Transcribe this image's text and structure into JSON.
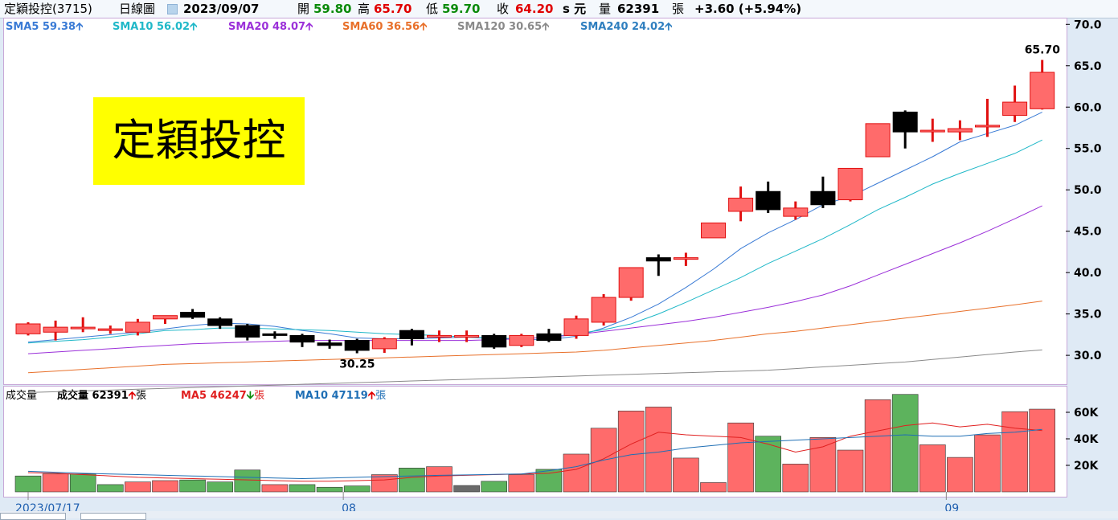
{
  "header": {
    "stock": "定穎投控(3715)",
    "chart_kind": "日線圖",
    "date": "2023/09/07",
    "open_label": "開",
    "open": "59.80",
    "high_label": "高",
    "high": "65.70",
    "low_label": "低",
    "low": "59.70",
    "close_label": "收",
    "close": "64.20",
    "unit": "s 元",
    "volume_label": "量",
    "volume": "62391",
    "volume_unit": "張",
    "change": "+3.60 (+5.94%)"
  },
  "ma_legend": [
    {
      "label": "SMA5 59.38",
      "arrow": "up",
      "color": "#3a7bd5"
    },
    {
      "label": "SMA10 56.02",
      "arrow": "up",
      "color": "#20b8c8"
    },
    {
      "label": "SMA20 48.07",
      "arrow": "up",
      "color": "#9b30d9"
    },
    {
      "label": "SMA60 36.56",
      "arrow": "up",
      "color": "#e8702a"
    },
    {
      "label": "SMA120 30.65",
      "arrow": "up",
      "color": "#8a8a8a"
    },
    {
      "label": "SMA240 24.02",
      "arrow": "up",
      "color": "#2f7fbf"
    }
  ],
  "volume_legend": {
    "title": "成交量",
    "vol_label": "成交量 62391",
    "vol_arrow": "up",
    "vol_unit": "張",
    "ma5_label": "MA5 46247",
    "ma5_arrow": "down",
    "ma5_unit": "張",
    "ma5_color": "#e02020",
    "ma10_label": "MA10 47119",
    "ma10_arrow": "up",
    "ma10_unit": "張",
    "ma10_color": "#1f6fb5"
  },
  "stock_box_text": "定穎投控",
  "colors": {
    "up": "#ff6b6b",
    "up_wick": "#e01010",
    "down": "#000000",
    "vol_up": "#ff6b6b",
    "vol_down": "#5db35d",
    "vol_flat": "#6a6a6a",
    "sma5": "#3a7bd5",
    "sma10": "#20b8c8",
    "sma20": "#9b30d9",
    "sma60": "#e8702a",
    "sma120": "#8a8a8a",
    "vol_ma5": "#e02020",
    "vol_ma10": "#1f6fb5"
  },
  "chart_data": [
    {
      "type": "candlestick",
      "title": "",
      "ylim": [
        27,
        71
      ],
      "y_ticks": [
        "30.0",
        "35.0",
        "40.0",
        "45.0",
        "50.0",
        "55.0",
        "60.0",
        "65.0",
        "70.0"
      ],
      "x_tick_labels": [
        "2023/07/17",
        "08",
        "09"
      ],
      "x_tick_positions": [
        0,
        11.5,
        33.5
      ],
      "annotations": [
        {
          "text": "65.70",
          "index": 37,
          "value": 65.7,
          "side": "above"
        },
        {
          "text": "30.25",
          "index": 12,
          "value": 30.25,
          "side": "below"
        }
      ],
      "candles": [
        {
          "o": 32.6,
          "h": 34.0,
          "l": 32.4,
          "c": 33.8
        },
        {
          "o": 32.8,
          "h": 34.2,
          "l": 31.8,
          "c": 33.4
        },
        {
          "o": 33.4,
          "h": 34.6,
          "l": 32.8,
          "c": 33.4
        },
        {
          "o": 33.2,
          "h": 33.6,
          "l": 32.6,
          "c": 33.2
        },
        {
          "o": 32.8,
          "h": 34.4,
          "l": 32.4,
          "c": 34.0
        },
        {
          "o": 34.4,
          "h": 34.8,
          "l": 33.8,
          "c": 34.8
        },
        {
          "o": 35.2,
          "h": 35.6,
          "l": 34.4,
          "c": 34.6
        },
        {
          "o": 34.4,
          "h": 34.6,
          "l": 33.2,
          "c": 33.6
        },
        {
          "o": 33.6,
          "h": 33.8,
          "l": 31.8,
          "c": 32.2
        },
        {
          "o": 32.6,
          "h": 32.9,
          "l": 32.0,
          "c": 32.4
        },
        {
          "o": 32.4,
          "h": 32.6,
          "l": 31.0,
          "c": 31.6
        },
        {
          "o": 31.5,
          "h": 31.9,
          "l": 30.8,
          "c": 31.2
        },
        {
          "o": 31.8,
          "h": 32.0,
          "l": 30.25,
          "c": 30.6
        },
        {
          "o": 30.8,
          "h": 32.2,
          "l": 30.3,
          "c": 32.0
        },
        {
          "o": 33.0,
          "h": 33.2,
          "l": 31.2,
          "c": 32.0
        },
        {
          "o": 32.2,
          "h": 33.0,
          "l": 31.6,
          "c": 32.4
        },
        {
          "o": 32.2,
          "h": 33.0,
          "l": 31.6,
          "c": 32.4
        },
        {
          "o": 32.4,
          "h": 32.6,
          "l": 30.8,
          "c": 31.0
        },
        {
          "o": 31.2,
          "h": 32.6,
          "l": 31.0,
          "c": 32.4
        },
        {
          "o": 32.6,
          "h": 33.2,
          "l": 31.6,
          "c": 31.8
        },
        {
          "o": 32.4,
          "h": 34.8,
          "l": 32.0,
          "c": 34.4
        },
        {
          "o": 34.0,
          "h": 37.4,
          "l": 33.6,
          "c": 37.0
        },
        {
          "o": 37.0,
          "h": 40.6,
          "l": 36.6,
          "c": 40.6
        },
        {
          "o": 41.8,
          "h": 42.2,
          "l": 39.6,
          "c": 41.4
        },
        {
          "o": 41.8,
          "h": 42.4,
          "l": 40.8,
          "c": 41.8
        },
        {
          "o": 44.2,
          "h": 46.0,
          "l": 44.2,
          "c": 46.0
        },
        {
          "o": 47.4,
          "h": 50.4,
          "l": 46.2,
          "c": 49.0
        },
        {
          "o": 49.8,
          "h": 51.0,
          "l": 47.2,
          "c": 47.6
        },
        {
          "o": 46.8,
          "h": 48.6,
          "l": 46.4,
          "c": 47.8
        },
        {
          "o": 49.8,
          "h": 51.6,
          "l": 47.8,
          "c": 48.2
        },
        {
          "o": 48.8,
          "h": 52.6,
          "l": 48.6,
          "c": 52.6
        },
        {
          "o": 54.0,
          "h": 58.0,
          "l": 54.0,
          "c": 58.0
        },
        {
          "o": 59.4,
          "h": 59.6,
          "l": 55.0,
          "c": 57.0
        },
        {
          "o": 57.2,
          "h": 58.6,
          "l": 55.8,
          "c": 57.2
        },
        {
          "o": 57.0,
          "h": 58.4,
          "l": 56.0,
          "c": 57.4
        },
        {
          "o": 57.6,
          "h": 61.0,
          "l": 56.4,
          "c": 57.8
        },
        {
          "o": 59.0,
          "h": 62.6,
          "l": 58.2,
          "c": 60.6
        },
        {
          "o": 59.8,
          "h": 65.7,
          "l": 59.7,
          "c": 64.2
        }
      ],
      "series": [
        {
          "name": "SMA5",
          "values": [
            31.6,
            31.9,
            32.2,
            32.5,
            32.8,
            33.2,
            33.6,
            33.9,
            33.8,
            33.5,
            33.0,
            32.6,
            32.1,
            32.0,
            32.0,
            32.1,
            32.2,
            32.0,
            31.9,
            31.9,
            32.3,
            33.3,
            34.6,
            36.2,
            38.2,
            40.4,
            42.9,
            44.8,
            46.4,
            48.2,
            49.2,
            50.8,
            52.4,
            54.0,
            55.8,
            56.8,
            57.8,
            59.38
          ]
        },
        {
          "name": "SMA10",
          "values": [
            31.2,
            31.3,
            31.5,
            31.7,
            31.9,
            32.2,
            32.6,
            33.0,
            33.1,
            33.3,
            33.3,
            33.2,
            33.1,
            33.0,
            32.8,
            32.6,
            32.5,
            32.4,
            32.2,
            32.1,
            32.0,
            32.2,
            32.6,
            33.1,
            33.8,
            35.0,
            36.4,
            37.9,
            39.4,
            41.1,
            42.6,
            44.1,
            45.8,
            47.6,
            49.1,
            50.7,
            52.0,
            53.2,
            54.4,
            56.02
          ]
        },
        {
          "name": "SMA20",
          "values": [
            29.6,
            29.8,
            30.0,
            30.2,
            30.4,
            30.6,
            30.8,
            31.0,
            31.2,
            31.4,
            31.5,
            31.6,
            31.7,
            31.8,
            31.8,
            31.8,
            31.8,
            31.8,
            31.8,
            31.8,
            31.9,
            32.0,
            32.2,
            32.5,
            32.9,
            33.3,
            33.7,
            34.1,
            34.6,
            35.2,
            35.8,
            36.5,
            37.3,
            38.4,
            39.7,
            41.0,
            42.3,
            43.6,
            45.0,
            46.5,
            48.07
          ]
        },
        {
          "name": "SMA60",
          "values": [
            27.7,
            27.9,
            28.1,
            28.3,
            28.5,
            28.7,
            28.9,
            29.0,
            29.1,
            29.2,
            29.3,
            29.4,
            29.5,
            29.6,
            29.7,
            29.8,
            29.9,
            30.0,
            30.1,
            30.2,
            30.3,
            30.4,
            30.6,
            30.9,
            31.2,
            31.5,
            31.8,
            32.2,
            32.6,
            32.9,
            33.3,
            33.7,
            34.1,
            34.5,
            34.9,
            35.3,
            35.7,
            36.1,
            36.56
          ]
        },
        {
          "name": "SMA120",
          "values": [
            25.4,
            25.5,
            25.6,
            25.7,
            25.8,
            25.9,
            26.0,
            26.1,
            26.2,
            26.3,
            26.4,
            26.5,
            26.6,
            26.7,
            26.8,
            26.9,
            27.0,
            27.1,
            27.2,
            27.3,
            27.4,
            27.5,
            27.6,
            27.7,
            27.8,
            27.9,
            28.0,
            28.1,
            28.2,
            28.4,
            28.6,
            28.8,
            29.0,
            29.2,
            29.5,
            29.8,
            30.1,
            30.4,
            30.65
          ]
        }
      ]
    },
    {
      "type": "bar",
      "title": "",
      "ylim": [
        0,
        80000
      ],
      "y_ticks": [
        "20K",
        "40K",
        "60K"
      ],
      "values": [
        12000,
        13500,
        13500,
        5500,
        7500,
        8500,
        9000,
        7500,
        16500,
        5500,
        5500,
        3500,
        4500,
        13000,
        18000,
        19000,
        4800,
        8000,
        13000,
        17000,
        28500,
        48000,
        61000,
        64000,
        25500,
        7000,
        52000,
        42000,
        21000,
        41000,
        31500,
        69500,
        73500,
        35500,
        26000,
        43000,
        60500,
        62391
      ],
      "bar_colors": [
        "down",
        "up",
        "down",
        "down",
        "up",
        "up",
        "down",
        "down",
        "down",
        "up",
        "down",
        "down",
        "down",
        "up",
        "down",
        "up",
        "flat",
        "down",
        "up",
        "down",
        "up",
        "up",
        "up",
        "up",
        "up",
        "up",
        "up",
        "down",
        "up",
        "up",
        "up",
        "up",
        "down",
        "up",
        "up",
        "up",
        "up",
        "up"
      ],
      "series": [
        {
          "name": "MA5",
          "values": [
            15000,
            14500,
            14000,
            13000,
            12000,
            11000,
            10500,
            10000,
            9500,
            9000,
            8500,
            8000,
            8000,
            8500,
            9000,
            11000,
            12000,
            12500,
            13000,
            13500,
            14000,
            17000,
            25000,
            36000,
            45000,
            43000,
            42000,
            41000,
            36000,
            30000,
            34000,
            42000,
            46000,
            50000,
            52000,
            49000,
            51000,
            48000,
            46247
          ]
        },
        {
          "name": "MA10",
          "values": [
            16000,
            15800,
            15500,
            14800,
            14000,
            13500,
            13000,
            12500,
            12000,
            11500,
            11000,
            10500,
            10000,
            10500,
            11000,
            11500,
            12000,
            12500,
            12800,
            13200,
            13500,
            16000,
            19000,
            24000,
            28000,
            30000,
            33000,
            35000,
            37000,
            38000,
            39000,
            40000,
            41000,
            42000,
            43000,
            42000,
            42000,
            44000,
            45000,
            47119
          ]
        }
      ]
    }
  ]
}
